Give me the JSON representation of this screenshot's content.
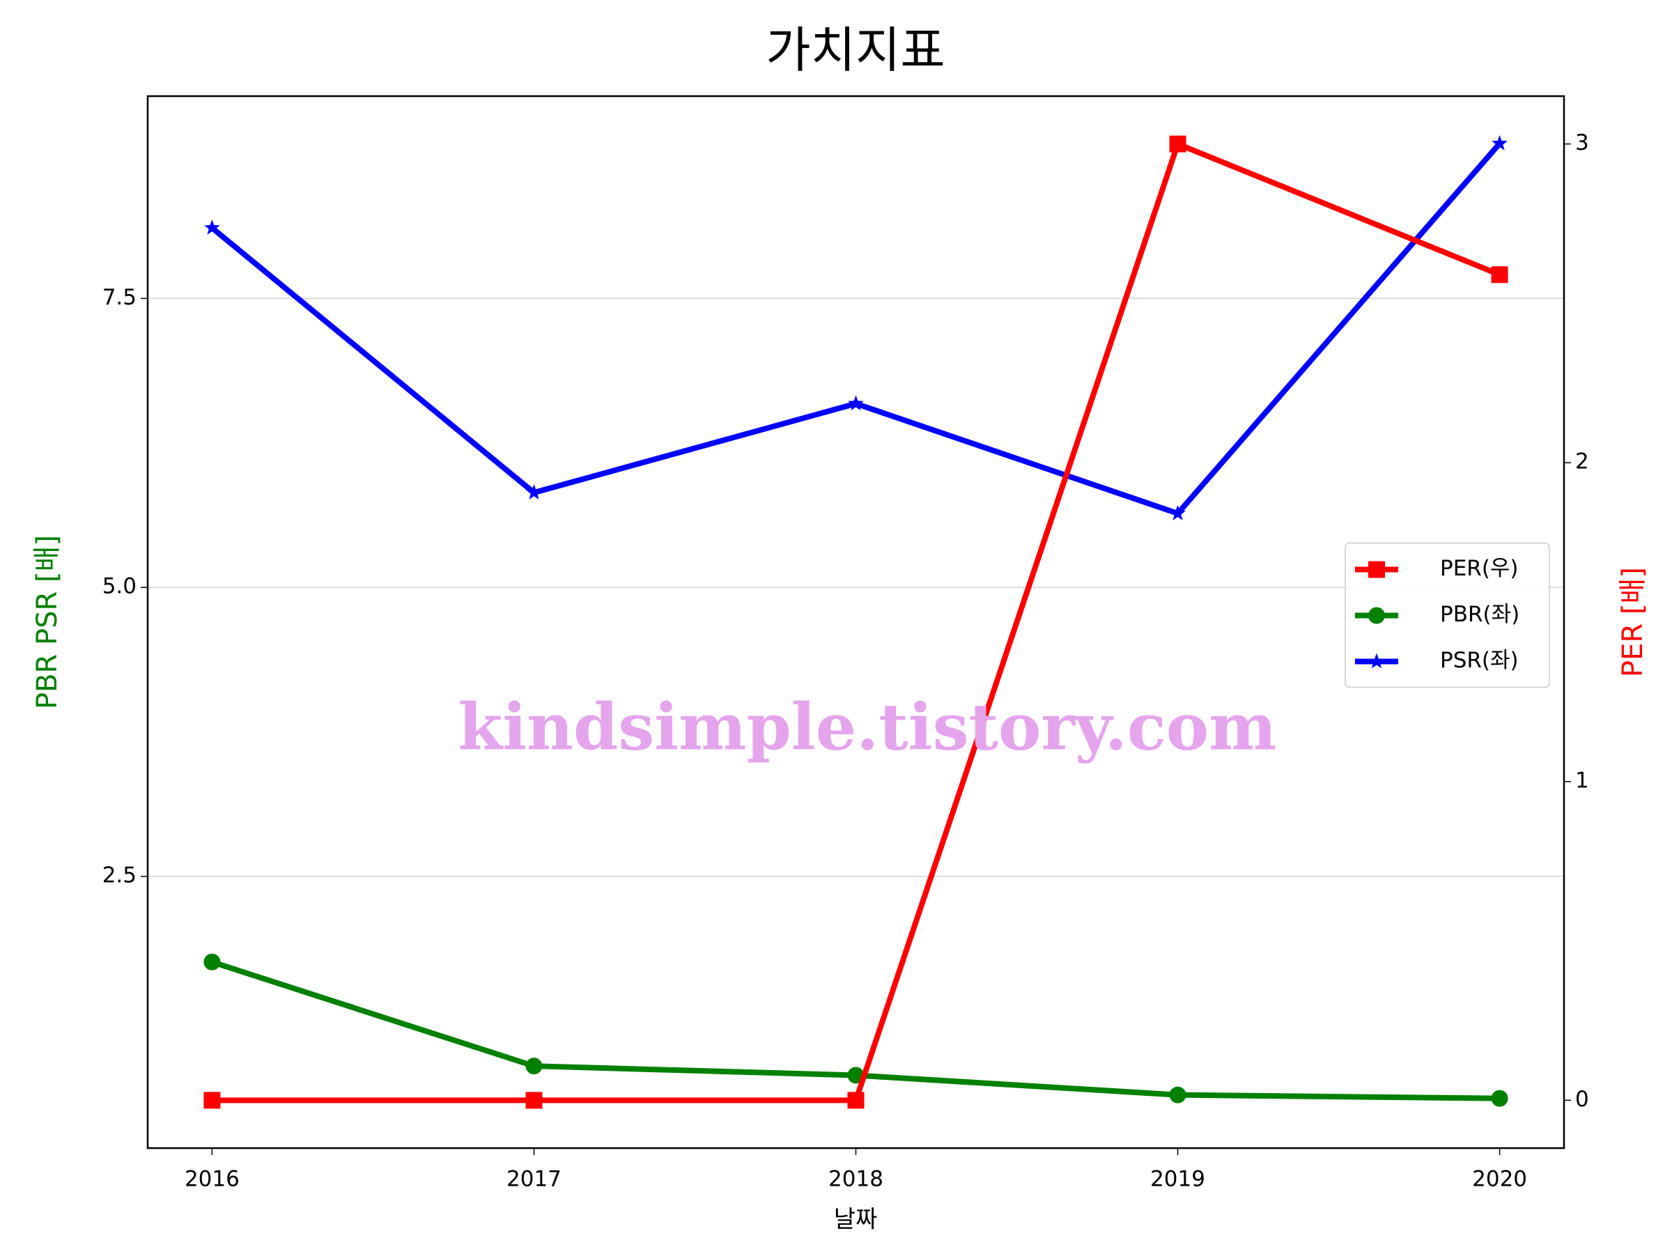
{
  "chart_data": {
    "type": "line",
    "title": "가치지표",
    "xlabel": "날짜",
    "ylabel": "PBR PSR [배]",
    "ylabel_color": "green",
    "y2label": "PER [배]",
    "y2label_color": "red",
    "annotation": "kindsimple.tistory.com",
    "annotation_color": "#e4a5ec",
    "x": [
      2016,
      2017,
      2018,
      2019,
      2020
    ],
    "xlim": [
      2015.8,
      2020.2
    ],
    "xticks": [
      2016,
      2017,
      2018,
      2019,
      2020
    ],
    "ylim": [
      0.15,
      9.25
    ],
    "yticks": [
      2.5,
      {
        "value": 5,
        "label": "5.0"
      },
      7.5
    ],
    "y2lim": [
      -0.15,
      3.15
    ],
    "y2ticks": [
      0,
      1,
      2,
      3
    ],
    "grid": true,
    "legend": "center right",
    "series": [
      {
        "name": "PER(우)",
        "color": "red",
        "marker": "square",
        "axis": "y2",
        "values": [
          0,
          0,
          0,
          3.0,
          2.59
        ]
      },
      {
        "name": "PBR(좌)",
        "color": "green",
        "marker": "circle",
        "values": [
          1.76,
          0.86,
          0.78,
          0.61,
          0.58
        ]
      },
      {
        "name": "PSR(좌)",
        "color": "blue",
        "marker": "star",
        "values": [
          8.11,
          5.82,
          6.59,
          5.64,
          8.84
        ]
      }
    ]
  }
}
